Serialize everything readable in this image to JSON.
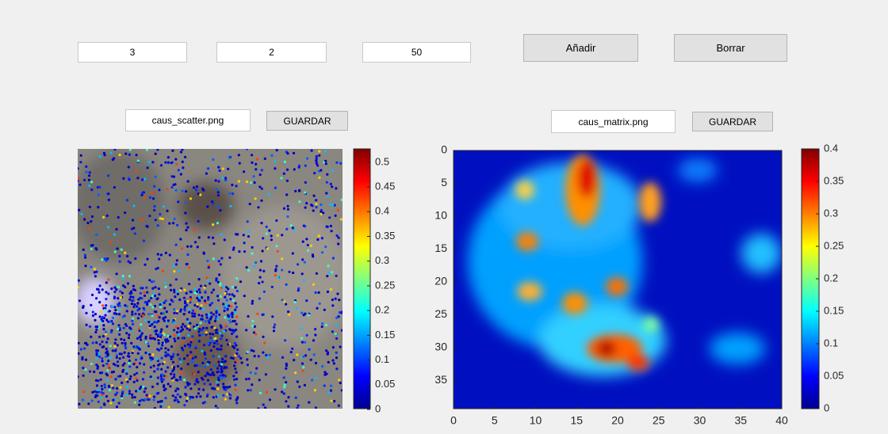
{
  "inputs": [
    "3",
    "2",
    "50"
  ],
  "buttons": [
    "Añadir",
    "Borrar"
  ],
  "left_panel": {
    "filename": "caus_scatter.png",
    "save_button": "GUARDAR",
    "colorbar": {
      "clim": [
        0,
        0.527
      ],
      "ticks": [
        0,
        0.05,
        0.1,
        0.15,
        0.2,
        0.25,
        0.3,
        0.35,
        0.4,
        0.45,
        0.5
      ]
    }
  },
  "right_panel": {
    "filename": "caus_matrix.png",
    "save_button": "GUARDAR",
    "xlim": [
      0,
      40
    ],
    "xticks": [
      0,
      5,
      10,
      15,
      20,
      25,
      30,
      35,
      40
    ],
    "ylim": [
      0,
      39.3
    ],
    "yticks": [
      0,
      5,
      10,
      15,
      20,
      25,
      30,
      35
    ],
    "colorbar": {
      "clim": [
        0,
        0.4
      ],
      "ticks": [
        0,
        0.05,
        0.1,
        0.15,
        0.2,
        0.25,
        0.3,
        0.35,
        0.4
      ]
    }
  }
}
